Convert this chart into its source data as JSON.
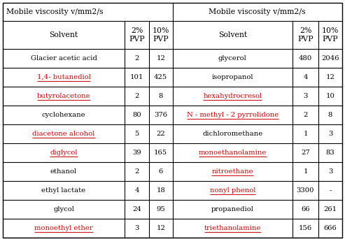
{
  "title": "Mobile viscosity v/mm2/s",
  "left_rows": [
    [
      "Glacier acetic acid",
      "2",
      "12"
    ],
    [
      "1,4- butanediol",
      "101",
      "425"
    ],
    [
      "butyrolacetone",
      "2",
      "8"
    ],
    [
      "cyclohexane",
      "80",
      "376"
    ],
    [
      "diacetone alcohol",
      "5",
      "22"
    ],
    [
      "diglycol",
      "39",
      "165"
    ],
    [
      "ethanol",
      "2",
      "6"
    ],
    [
      "ethyl lactate",
      "4",
      "18"
    ],
    [
      "glycol",
      "24",
      "95"
    ],
    [
      "monoethyl ether",
      "3",
      "12"
    ]
  ],
  "right_rows": [
    [
      "glycerol",
      "480",
      "2046"
    ],
    [
      "isopropanol",
      "4",
      "12"
    ],
    [
      "hexahydrocresol",
      "3",
      "10"
    ],
    [
      "N - methyl - 2 pyrrolidone",
      "2",
      "8"
    ],
    [
      "dichloromethane",
      "1",
      "3"
    ],
    [
      "monoethanolamine",
      "27",
      "83"
    ],
    [
      "nitroethane",
      "1",
      "3"
    ],
    [
      "nonyl phenol",
      "3300",
      "-"
    ],
    [
      "propanediol",
      "66",
      "261"
    ],
    [
      "triethanolamine",
      "156",
      "666"
    ]
  ],
  "underlined_left": [
    "1,4- butanediol",
    "butyrolacetone",
    "diacetone alcohol",
    "diglycol",
    "monoethyl ether"
  ],
  "underlined_right": [
    "hexahydrocresol",
    "monoethanolamine",
    "nitroethane",
    "nonyl phenol",
    "triethanolamine",
    "N - methyl - 2 pyrrolidone"
  ],
  "red_left": [
    "1,4- butanediol",
    "butyrolacetone",
    "diacetone alcohol",
    "diglycol",
    "monoethyl ether"
  ],
  "red_right": [
    "hexahydrocresol",
    "monoethanolamine",
    "nitroethane",
    "nonyl phenol",
    "triethanolamine",
    "N - methyl - 2 pyrrolidone"
  ],
  "bg_color": "#ffffff",
  "border_color": "#000000",
  "text_color_normal": "#000000",
  "text_color_red": "#cc0000",
  "font_size": 7.2,
  "header_font_size": 7.8,
  "fig_w": 4.93,
  "fig_h": 3.42,
  "dpi": 100
}
